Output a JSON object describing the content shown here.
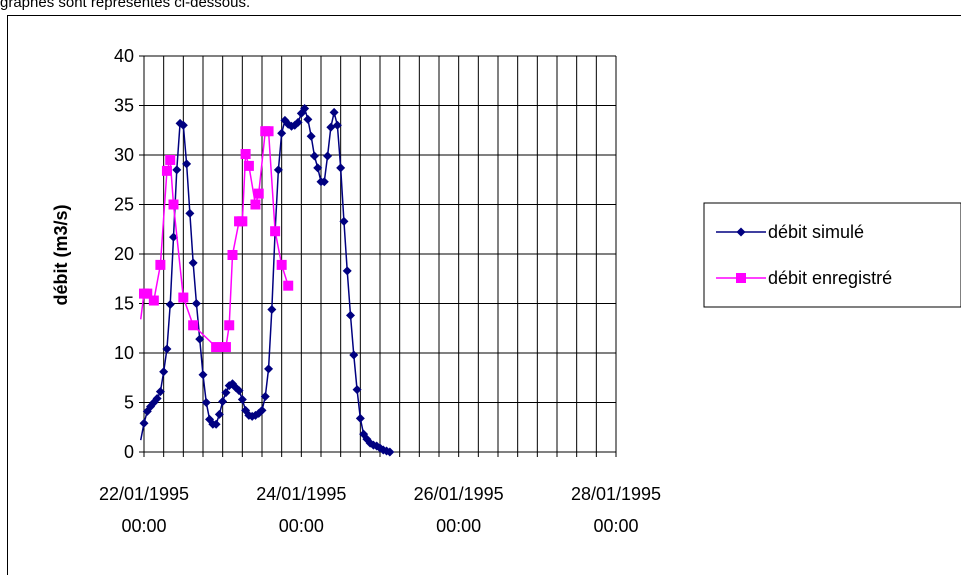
{
  "page": {
    "caption": "graphes sont représentés ci-dessous."
  },
  "chart_data": {
    "type": "line",
    "title": "",
    "xlabel": "",
    "ylabel": "débit (m3/s)",
    "ylim": [
      0,
      40
    ],
    "yticks": [
      0,
      5,
      10,
      15,
      20,
      25,
      30,
      35,
      40
    ],
    "xlim": [
      "1995-01-22 00:00",
      "1995-01-28 00:00"
    ],
    "xticks": [
      {
        "value": "1995-01-22 00:00",
        "label_line1": "22/01/1995",
        "label_line2": "00:00"
      },
      {
        "value": "1995-01-24 00:00",
        "label_line1": "24/01/1995",
        "label_line2": "00:00"
      },
      {
        "value": "1995-01-26 00:00",
        "label_line1": "26/01/1995",
        "label_line2": "00:00"
      },
      {
        "value": "1995-01-28 00:00",
        "label_line1": "28/01/1995",
        "label_line2": "00:00"
      }
    ],
    "grid": {
      "horizontal": true,
      "vertical": true,
      "vertical_every_hours": 6
    },
    "legend_position": "right",
    "series": [
      {
        "name": "débit simulé",
        "color": "#000080",
        "marker": "diamond",
        "points": [
          [
            "1995-01-21 23:00",
            1.2
          ],
          [
            "1995-01-22 00:00",
            2.9
          ],
          [
            "1995-01-22 01:00",
            4.1
          ],
          [
            "1995-01-22 02:00",
            4.6
          ],
          [
            "1995-01-22 03:00",
            5.0
          ],
          [
            "1995-01-22 04:00",
            5.4
          ],
          [
            "1995-01-22 05:00",
            6.1
          ],
          [
            "1995-01-22 06:00",
            8.1
          ],
          [
            "1995-01-22 07:00",
            10.4
          ],
          [
            "1995-01-22 08:00",
            14.9
          ],
          [
            "1995-01-22 09:00",
            21.7
          ],
          [
            "1995-01-22 10:00",
            28.5
          ],
          [
            "1995-01-22 11:00",
            33.2
          ],
          [
            "1995-01-22 12:00",
            33.0
          ],
          [
            "1995-01-22 13:00",
            29.1
          ],
          [
            "1995-01-22 14:00",
            24.1
          ],
          [
            "1995-01-22 15:00",
            19.1
          ],
          [
            "1995-01-22 16:00",
            15.0
          ],
          [
            "1995-01-22 17:00",
            11.4
          ],
          [
            "1995-01-22 18:00",
            7.8
          ],
          [
            "1995-01-22 19:00",
            5.0
          ],
          [
            "1995-01-22 20:00",
            3.3
          ],
          [
            "1995-01-22 21:00",
            2.8
          ],
          [
            "1995-01-22 22:00",
            2.8
          ],
          [
            "1995-01-22 23:00",
            3.8
          ],
          [
            "1995-01-23 00:00",
            5.1
          ],
          [
            "1995-01-23 01:00",
            6.0
          ],
          [
            "1995-01-23 02:00",
            6.7
          ],
          [
            "1995-01-23 03:00",
            6.9
          ],
          [
            "1995-01-23 04:00",
            6.5
          ],
          [
            "1995-01-23 05:00",
            6.2
          ],
          [
            "1995-01-23 06:00",
            5.3
          ],
          [
            "1995-01-23 07:00",
            4.2
          ],
          [
            "1995-01-23 08:00",
            3.7
          ],
          [
            "1995-01-23 09:00",
            3.6
          ],
          [
            "1995-01-23 10:00",
            3.7
          ],
          [
            "1995-01-23 11:00",
            3.9
          ],
          [
            "1995-01-23 12:00",
            4.2
          ],
          [
            "1995-01-23 13:00",
            5.6
          ],
          [
            "1995-01-23 14:00",
            8.4
          ],
          [
            "1995-01-23 15:00",
            14.4
          ],
          [
            "1995-01-23 16:00",
            22.3
          ],
          [
            "1995-01-23 17:00",
            28.5
          ],
          [
            "1995-01-23 18:00",
            32.2
          ],
          [
            "1995-01-23 19:00",
            33.5
          ],
          [
            "1995-01-23 20:00",
            33.1
          ],
          [
            "1995-01-23 21:00",
            32.9
          ],
          [
            "1995-01-23 22:00",
            33.0
          ],
          [
            "1995-01-23 23:00",
            33.3
          ],
          [
            "1995-01-24 00:00",
            34.2
          ],
          [
            "1995-01-24 01:00",
            34.7
          ],
          [
            "1995-01-24 02:00",
            33.6
          ],
          [
            "1995-01-24 03:00",
            31.9
          ],
          [
            "1995-01-24 04:00",
            29.9
          ],
          [
            "1995-01-24 05:00",
            28.7
          ],
          [
            "1995-01-24 06:00",
            27.3
          ],
          [
            "1995-01-24 07:00",
            27.3
          ],
          [
            "1995-01-24 08:00",
            29.9
          ],
          [
            "1995-01-24 09:00",
            32.8
          ],
          [
            "1995-01-24 10:00",
            34.3
          ],
          [
            "1995-01-24 11:00",
            33.0
          ],
          [
            "1995-01-24 12:00",
            28.7
          ],
          [
            "1995-01-24 13:00",
            23.3
          ],
          [
            "1995-01-24 14:00",
            18.3
          ],
          [
            "1995-01-24 15:00",
            13.8
          ],
          [
            "1995-01-24 16:00",
            9.8
          ],
          [
            "1995-01-24 17:00",
            6.3
          ],
          [
            "1995-01-24 18:00",
            3.4
          ],
          [
            "1995-01-24 19:00",
            1.8
          ],
          [
            "1995-01-24 20:00",
            1.3
          ],
          [
            "1995-01-24 21:00",
            0.9
          ],
          [
            "1995-01-24 22:00",
            0.7
          ],
          [
            "1995-01-24 23:00",
            0.6
          ],
          [
            "1995-01-25 00:00",
            0.4
          ],
          [
            "1995-01-25 01:00",
            0.2
          ],
          [
            "1995-01-25 02:00",
            0.1
          ],
          [
            "1995-01-25 03:00",
            0.0
          ]
        ]
      },
      {
        "name": "débit enregistré",
        "color": "#ff00ff",
        "marker": "square",
        "points": [
          [
            "1995-01-21 23:00",
            13.4
          ],
          [
            "1995-01-22 00:00",
            16.0
          ],
          [
            "1995-01-22 01:00",
            16.0
          ],
          [
            "1995-01-22 03:00",
            15.3
          ],
          [
            "1995-01-22 05:00",
            18.9
          ],
          [
            "1995-01-22 07:00",
            28.4
          ],
          [
            "1995-01-22 08:00",
            29.5
          ],
          [
            "1995-01-22 09:00",
            25.0
          ],
          [
            "1995-01-22 12:00",
            15.6
          ],
          [
            "1995-01-22 15:00",
            12.8
          ],
          [
            "1995-01-22 22:00",
            10.6
          ],
          [
            "1995-01-23 01:00",
            10.6
          ],
          [
            "1995-01-23 02:00",
            12.8
          ],
          [
            "1995-01-23 03:00",
            19.9
          ],
          [
            "1995-01-23 05:00",
            23.3
          ],
          [
            "1995-01-23 06:00",
            23.3
          ],
          [
            "1995-01-23 07:00",
            30.1
          ],
          [
            "1995-01-23 08:00",
            28.9
          ],
          [
            "1995-01-23 10:00",
            25.0
          ],
          [
            "1995-01-23 11:00",
            26.1
          ],
          [
            "1995-01-23 13:00",
            32.4
          ],
          [
            "1995-01-23 14:00",
            32.4
          ],
          [
            "1995-01-23 16:00",
            22.3
          ],
          [
            "1995-01-23 18:00",
            18.9
          ],
          [
            "1995-01-23 20:00",
            16.8
          ]
        ]
      }
    ]
  }
}
